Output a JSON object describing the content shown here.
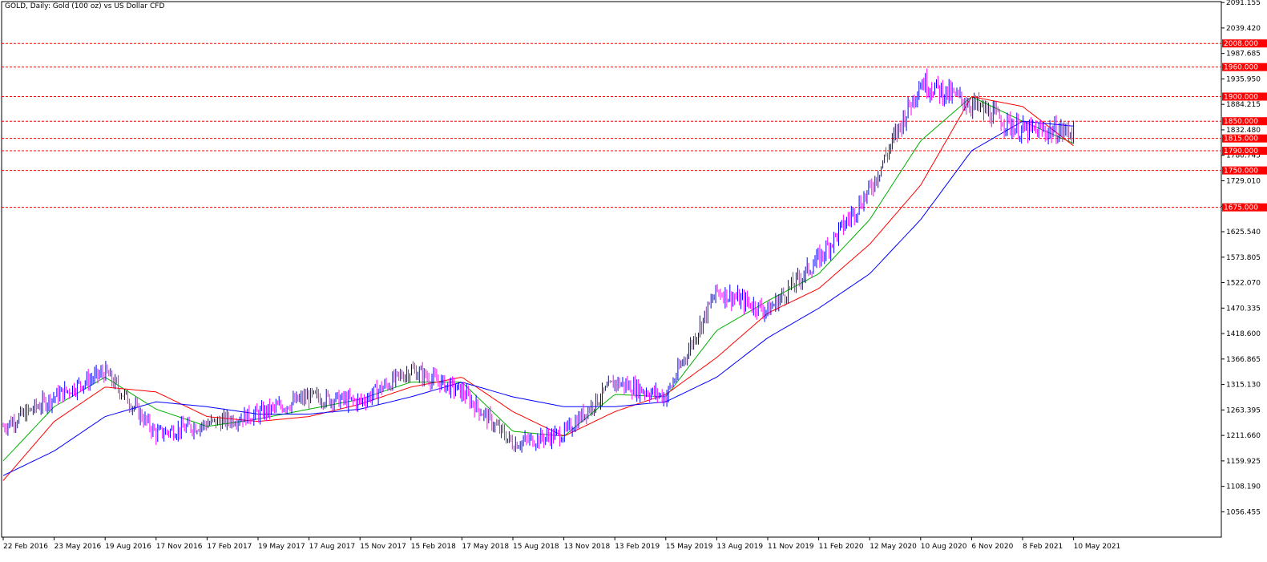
{
  "chart_title": "GOLD, Daily:  Gold (100 oz) vs US Dollar CFD",
  "colors": {
    "background": "#ffffff",
    "frame": "#000000",
    "bull_bar": "#0000ff",
    "bear_bar": "#ff00ff",
    "level_line": "#ff0000",
    "level_label_bg": "#ff0000",
    "level_label_text": "#ffffff",
    "ma_fast": "#00b000",
    "ma_medium": "#ff0000",
    "ma_slow": "#0000ff"
  },
  "chart_data": {
    "type": "line",
    "title": "GOLD, Daily:  Gold (100 oz) vs US Dollar CFD",
    "ylim": [
      1005,
      2093
    ],
    "y_ticks": [
      "2091.155",
      "2039.420",
      "1987.685",
      "1935.950",
      "1884.215",
      "1832.480",
      "1780.745",
      "1729.010",
      "1677.275",
      "1625.540",
      "1573.805",
      "1522.070",
      "1470.335",
      "1418.600",
      "1366.865",
      "1315.130",
      "1263.395",
      "1211.660",
      "1159.925",
      "1108.190",
      "1056.455"
    ],
    "x_labels": [
      "22 Feb 2016",
      "23 May 2016",
      "19 Aug 2016",
      "17 Nov 2016",
      "17 Feb 2017",
      "19 May 2017",
      "17 Aug 2017",
      "15 Nov 2017",
      "15 Feb 2018",
      "17 May 2018",
      "15 Aug 2018",
      "13 Nov 2018",
      "13 Feb 2019",
      "15 May 2019",
      "13 Aug 2019",
      "11 Nov 2019",
      "11 Feb 2020",
      "12 May 2020",
      "10 Aug 2020",
      "6 Nov 2020",
      "8 Feb 2021",
      "10 May 2021"
    ],
    "horizontal_levels": [
      {
        "value": 2008,
        "label": "2008.000"
      },
      {
        "value": 1960,
        "label": "1960.000"
      },
      {
        "value": 1900,
        "label": "1900.000"
      },
      {
        "value": 1850,
        "label": "1850.000"
      },
      {
        "value": 1815,
        "label": "1815.000"
      },
      {
        "value": 1790,
        "label": "1790.000"
      },
      {
        "value": 1750,
        "label": "1750.000"
      },
      {
        "value": 1675,
        "label": "1675.000"
      }
    ],
    "price_path": {
      "x": [
        "22 Feb 2016",
        "23 May 2016",
        "19 Aug 2016",
        "17 Nov 2016",
        "17 Feb 2017",
        "19 May 2017",
        "17 Aug 2017",
        "15 Nov 2017",
        "15 Feb 2018",
        "17 May 2018",
        "15 Aug 2018",
        "13 Nov 2018",
        "13 Feb 2019",
        "15 May 2019",
        "13 Aug 2019",
        "11 Nov 2019",
        "11 Feb 2020",
        "12 May 2020",
        "10 Aug 2020",
        "6 Nov 2020",
        "8 Feb 2021",
        "10 May 2021"
      ],
      "y": [
        1230,
        1290,
        1340,
        1215,
        1235,
        1255,
        1290,
        1280,
        1345,
        1300,
        1195,
        1215,
        1320,
        1290,
        1505,
        1465,
        1570,
        1710,
        1930,
        1885,
        1830,
        1830
      ]
    },
    "series": [
      {
        "values": [
          1160,
          1270,
          1330,
          1265,
          1230,
          1245,
          1265,
          1285,
          1320,
          1320,
          1220,
          1210,
          1295,
          1290,
          1425,
          1485,
          1540,
          1650,
          1810,
          1900,
          1850,
          1805
        ]
      },
      {
        "values": [
          1120,
          1240,
          1310,
          1300,
          1250,
          1240,
          1250,
          1275,
          1310,
          1330,
          1260,
          1210,
          1260,
          1295,
          1370,
          1460,
          1510,
          1600,
          1720,
          1900,
          1880,
          1800
        ]
      },
      {
        "values": [
          1130,
          1180,
          1250,
          1280,
          1270,
          1255,
          1255,
          1265,
          1290,
          1320,
          1290,
          1270,
          1270,
          1280,
          1330,
          1410,
          1470,
          1540,
          1650,
          1790,
          1850,
          1840
        ]
      }
    ]
  }
}
